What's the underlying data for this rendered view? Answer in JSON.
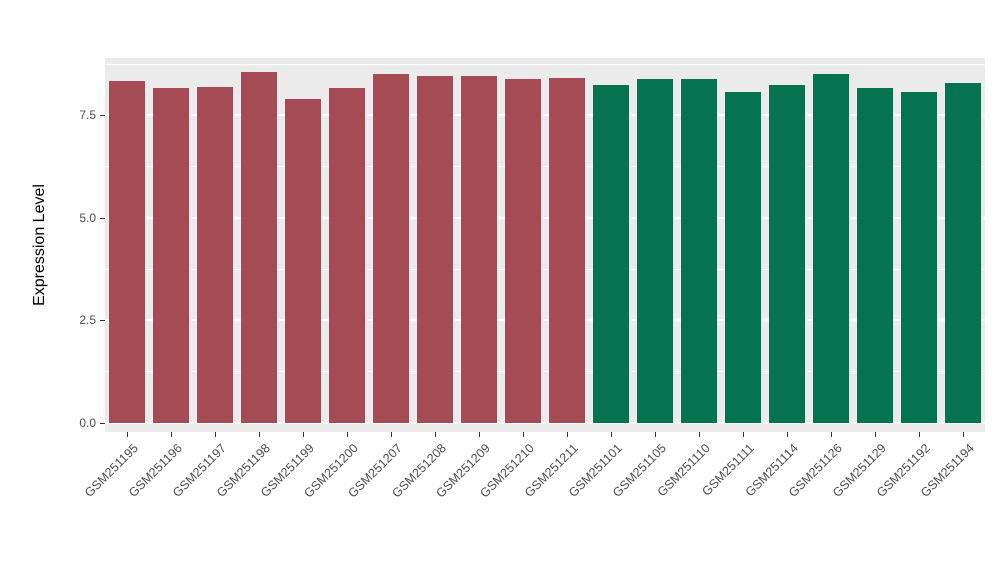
{
  "chart_data": {
    "type": "bar",
    "title": "",
    "xlabel": "",
    "ylabel": "Expression Level",
    "legend": "none",
    "grid": "on",
    "panel_bg": "#EBEBEB",
    "gridline_color": "#FFFFFF",
    "tick_label_color": "#4D4D4D",
    "ylim": [
      -0.22,
      8.9
    ],
    "yticks": [
      0.0,
      2.5,
      5.0,
      7.5
    ],
    "ytick_labels": [
      "0.0",
      "2.5",
      "5.0",
      "7.5"
    ],
    "minor_yticks": [
      1.25,
      3.75,
      6.25,
      8.75
    ],
    "categories": [
      "GSM251195",
      "GSM251196",
      "GSM251197",
      "GSM251198",
      "GSM251199",
      "GSM251200",
      "GSM251207",
      "GSM251208",
      "GSM251209",
      "GSM251210",
      "GSM251211",
      "GSM251101",
      "GSM251105",
      "GSM251110",
      "GSM251111",
      "GSM251114",
      "GSM251126",
      "GSM251129",
      "GSM251192",
      "GSM251194"
    ],
    "values": [
      8.33,
      8.16,
      8.2,
      8.55,
      7.9,
      8.16,
      8.52,
      8.45,
      8.47,
      8.4,
      8.42,
      8.25,
      8.38,
      8.4,
      8.08,
      8.25,
      8.5,
      8.18,
      8.08,
      8.28
    ],
    "bar_groups": [
      0,
      0,
      0,
      0,
      0,
      0,
      0,
      0,
      0,
      0,
      0,
      1,
      1,
      1,
      1,
      1,
      1,
      1,
      1,
      1
    ],
    "group_colors": [
      "#A54B55",
      "#067350"
    ]
  }
}
